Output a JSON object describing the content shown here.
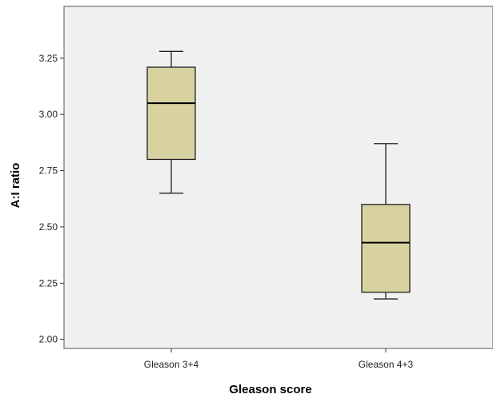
{
  "chart_data": {
    "type": "boxplot",
    "xlabel": "Gleason score",
    "ylabel": "A:I ratio",
    "ylim": [
      1.96,
      3.48
    ],
    "y_ticks": [
      2.0,
      2.25,
      2.5,
      2.75,
      3.0,
      3.25
    ],
    "y_tick_labels": [
      "2.00",
      "2.25",
      "2.50",
      "2.75",
      "3.00",
      "3.25"
    ],
    "categories": [
      "Gleason 3+4",
      "Gleason 4+3"
    ],
    "boxes": [
      {
        "category": "Gleason 3+4",
        "whisker_low": 2.65,
        "q1": 2.8,
        "median": 3.05,
        "q3": 3.21,
        "whisker_high": 3.28
      },
      {
        "category": "Gleason 4+3",
        "whisker_low": 2.18,
        "q1": 2.21,
        "median": 2.43,
        "q3": 2.6,
        "whisker_high": 2.87
      }
    ],
    "grid": false,
    "plot_background": "#f0f0f0",
    "box_fill": "#d8d2a1",
    "line_color": "#222222"
  }
}
